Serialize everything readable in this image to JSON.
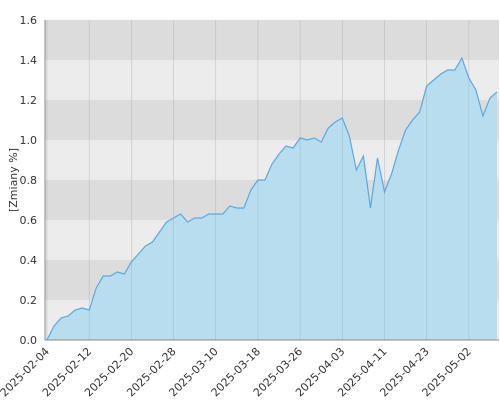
{
  "chart_data": {
    "type": "area",
    "y_label": "[Zmiany %]",
    "categories": [
      "2025-02-04",
      null,
      null,
      null,
      null,
      null,
      "2025-02-12",
      null,
      null,
      null,
      null,
      null,
      "2025-02-20",
      null,
      null,
      null,
      null,
      null,
      "2025-02-28",
      null,
      null,
      null,
      null,
      null,
      "2025-03-10",
      null,
      null,
      null,
      null,
      null,
      "2025-03-18",
      null,
      null,
      null,
      null,
      null,
      "2025-03-26",
      null,
      null,
      null,
      null,
      null,
      "2025-04-03",
      null,
      null,
      null,
      null,
      null,
      "2025-04-11",
      null,
      null,
      null,
      null,
      null,
      "2025-04-23",
      null,
      null,
      null,
      null,
      null,
      "2025-05-02",
      null,
      null,
      null,
      null
    ],
    "values": [
      0.0,
      0.07,
      0.11,
      0.12,
      0.15,
      0.16,
      0.15,
      0.26,
      0.32,
      0.32,
      0.34,
      0.33,
      0.39,
      0.43,
      0.47,
      0.49,
      0.54,
      0.59,
      0.61,
      0.63,
      0.59,
      0.61,
      0.61,
      0.63,
      0.63,
      0.63,
      0.67,
      0.66,
      0.66,
      0.75,
      0.8,
      0.8,
      0.88,
      0.93,
      0.97,
      0.96,
      1.01,
      1.0,
      1.01,
      0.99,
      1.06,
      1.09,
      1.11,
      1.02,
      0.85,
      0.92,
      0.66,
      0.91,
      0.74,
      0.83,
      0.95,
      1.05,
      1.1,
      1.14,
      1.27,
      1.3,
      1.33,
      1.35,
      1.35,
      1.41,
      1.31,
      1.25,
      1.12,
      1.21,
      1.24
    ],
    "color": "#5ba8e0",
    "fill": "#b5dcee",
    "ylim": [
      0,
      1.6
    ],
    "yticks": [
      {
        "value": 0,
        "label": "0.0"
      },
      0.2,
      0.4,
      0.6,
      0.8,
      {
        "value": 1,
        "label": "1.0"
      },
      1.2,
      1.4,
      1.6
    ],
    "grid": true
  }
}
